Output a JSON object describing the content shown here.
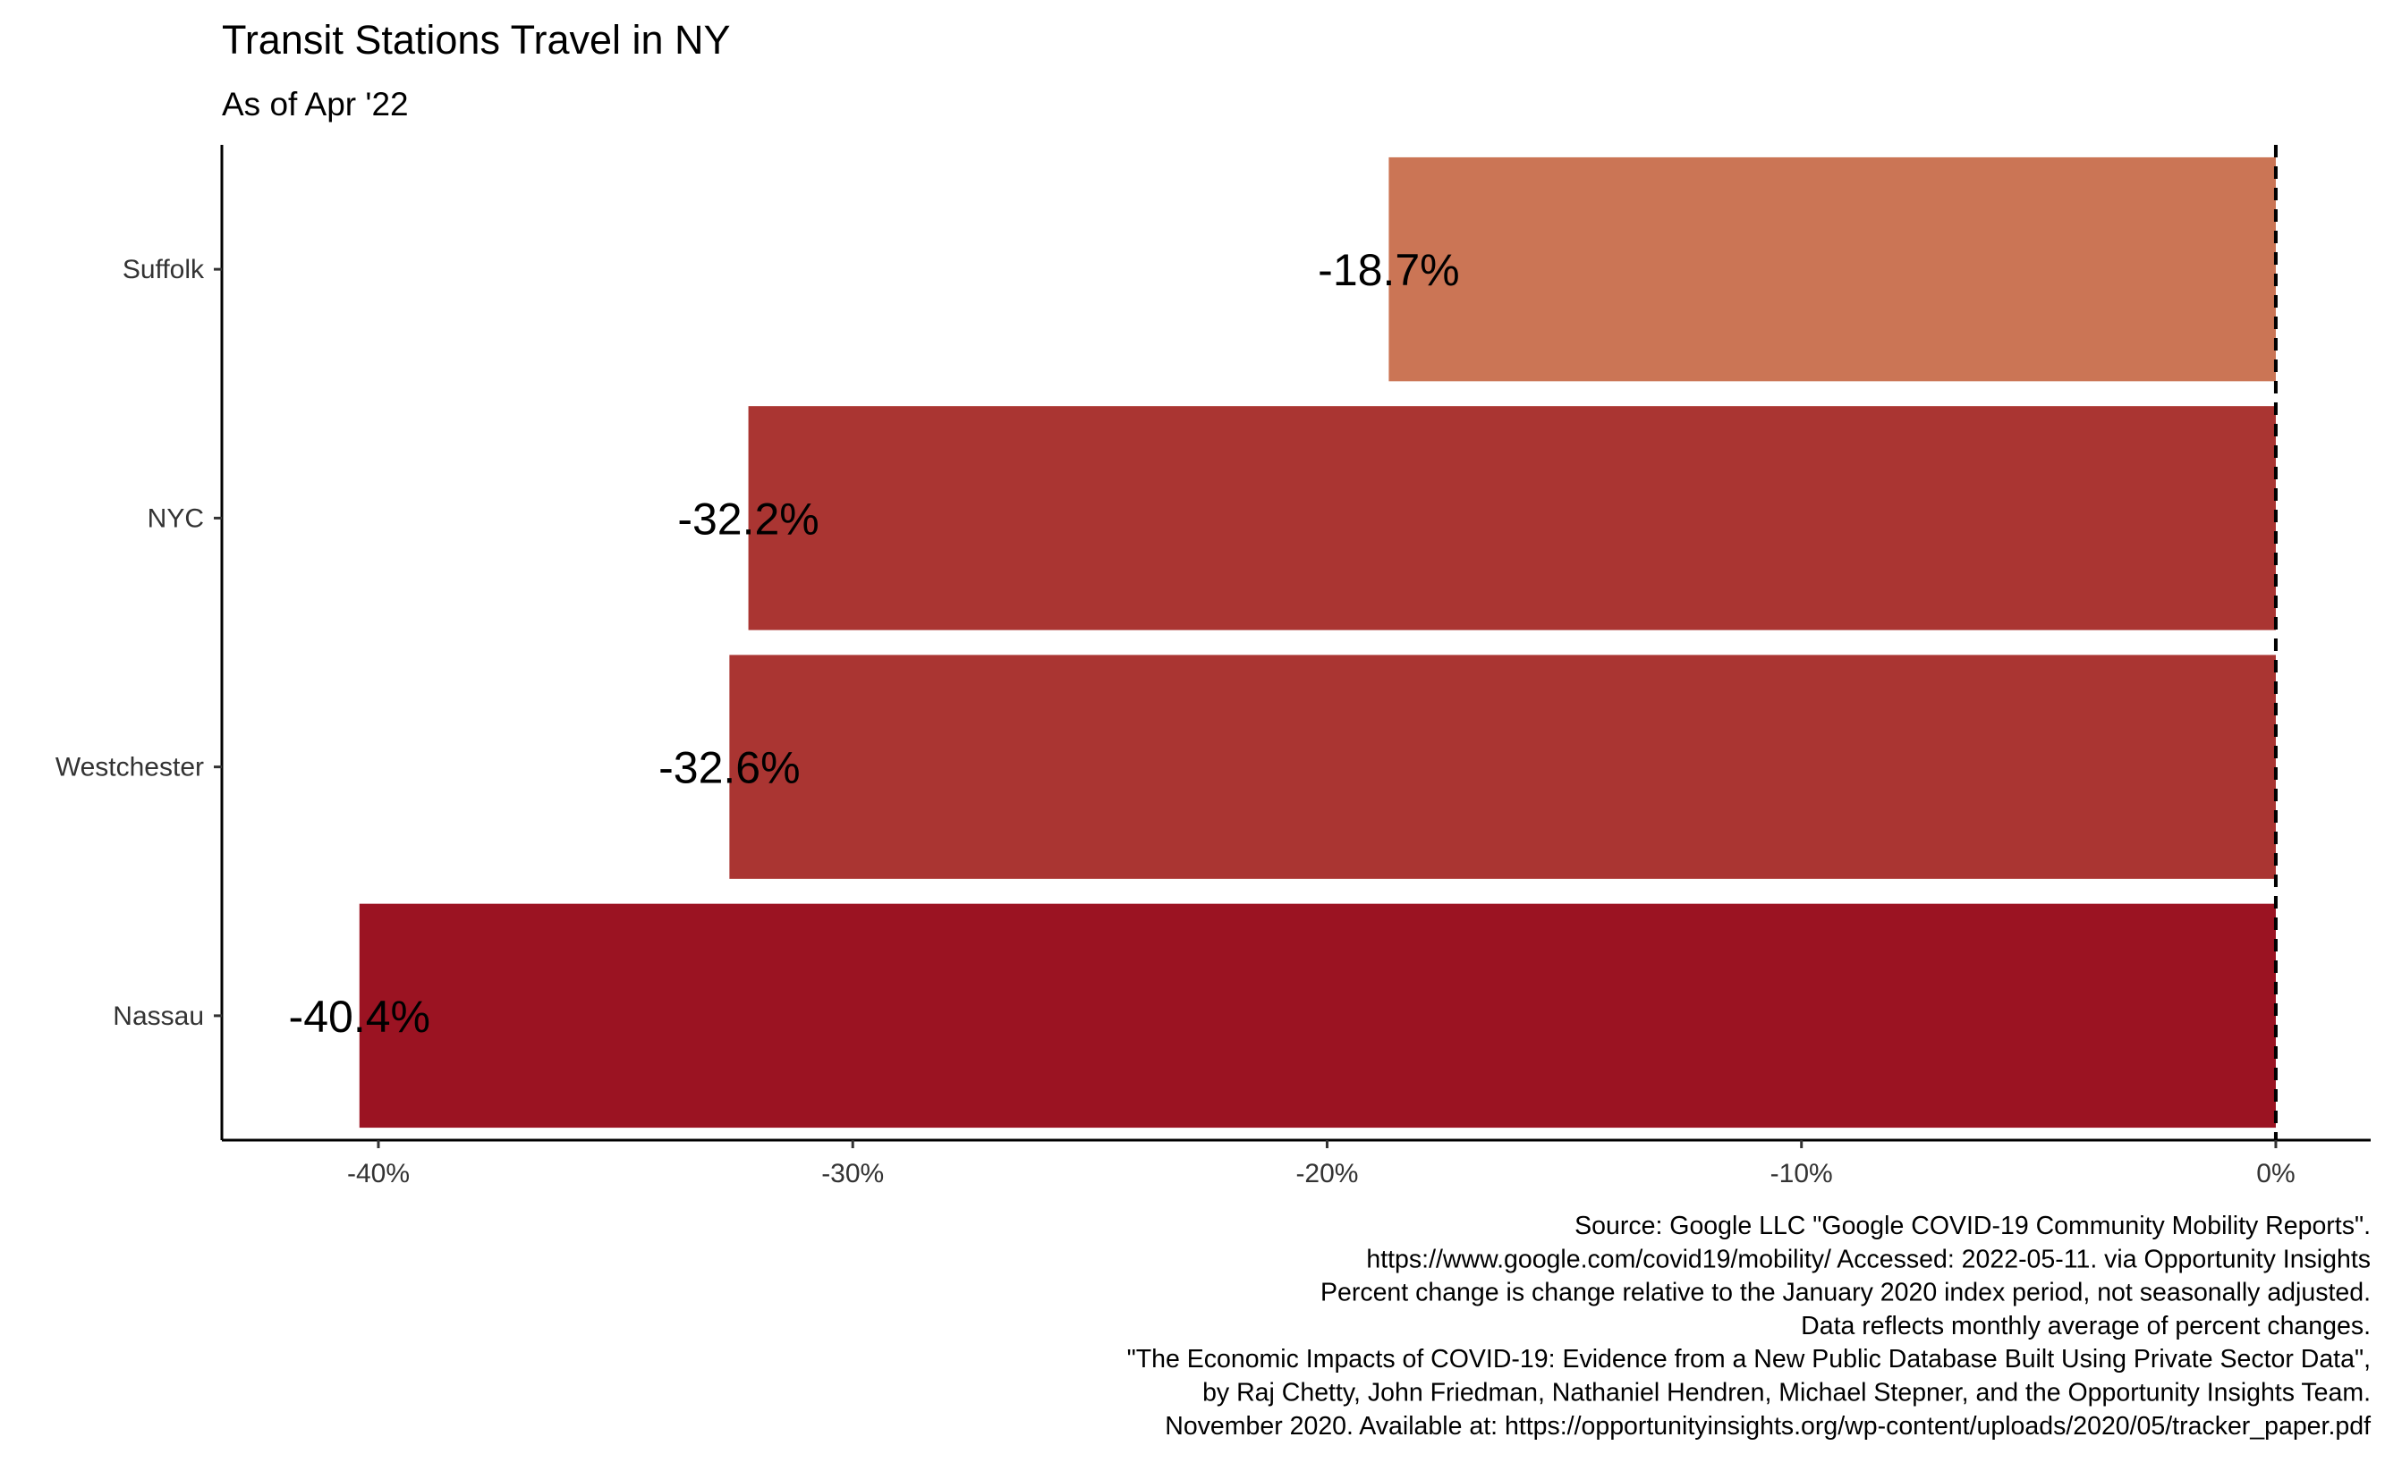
{
  "chart_data": {
    "type": "bar",
    "orientation": "horizontal",
    "title": "Transit Stations Travel in NY",
    "subtitle": "As of Apr '22",
    "categories": [
      "Suffolk",
      "NYC",
      "Westchester",
      "Nassau"
    ],
    "values": [
      -18.7,
      -32.2,
      -32.6,
      -40.4
    ],
    "value_labels": [
      "-18.7%",
      "-32.2%",
      "-32.6%",
      "-40.4%"
    ],
    "colors": [
      "#CB7555",
      "#AA3532",
      "#AA3532",
      "#9B1322"
    ],
    "xlim": [
      -43.3,
      2
    ],
    "xticks": [
      -40,
      -30,
      -20,
      -10,
      0
    ],
    "xtick_labels": [
      "-40%",
      "-30%",
      "-20%",
      "-10%",
      "0%"
    ],
    "reference_line": {
      "x": 0,
      "style": "dashed"
    },
    "grid": false,
    "caption": [
      "Source: Google LLC \"Google COVID-19 Community Mobility Reports\".",
      "https://www.google.com/covid19/mobility/ Accessed: 2022-05-11. via Opportunity Insights",
      "Percent change is change relative to the January 2020 index period, not seasonally adjusted.",
      "Data reflects monthly average of percent changes.",
      "\"The Economic Impacts of COVID-19: Evidence from a New Public Database Built Using Private Sector Data\",",
      "by Raj Chetty, John Friedman, Nathaniel Hendren, Michael Stepner, and the Opportunity Insights Team.",
      "November 2020. Available at: https://opportunityinsights.org/wp-content/uploads/2020/05/tracker_paper.pdf"
    ]
  }
}
